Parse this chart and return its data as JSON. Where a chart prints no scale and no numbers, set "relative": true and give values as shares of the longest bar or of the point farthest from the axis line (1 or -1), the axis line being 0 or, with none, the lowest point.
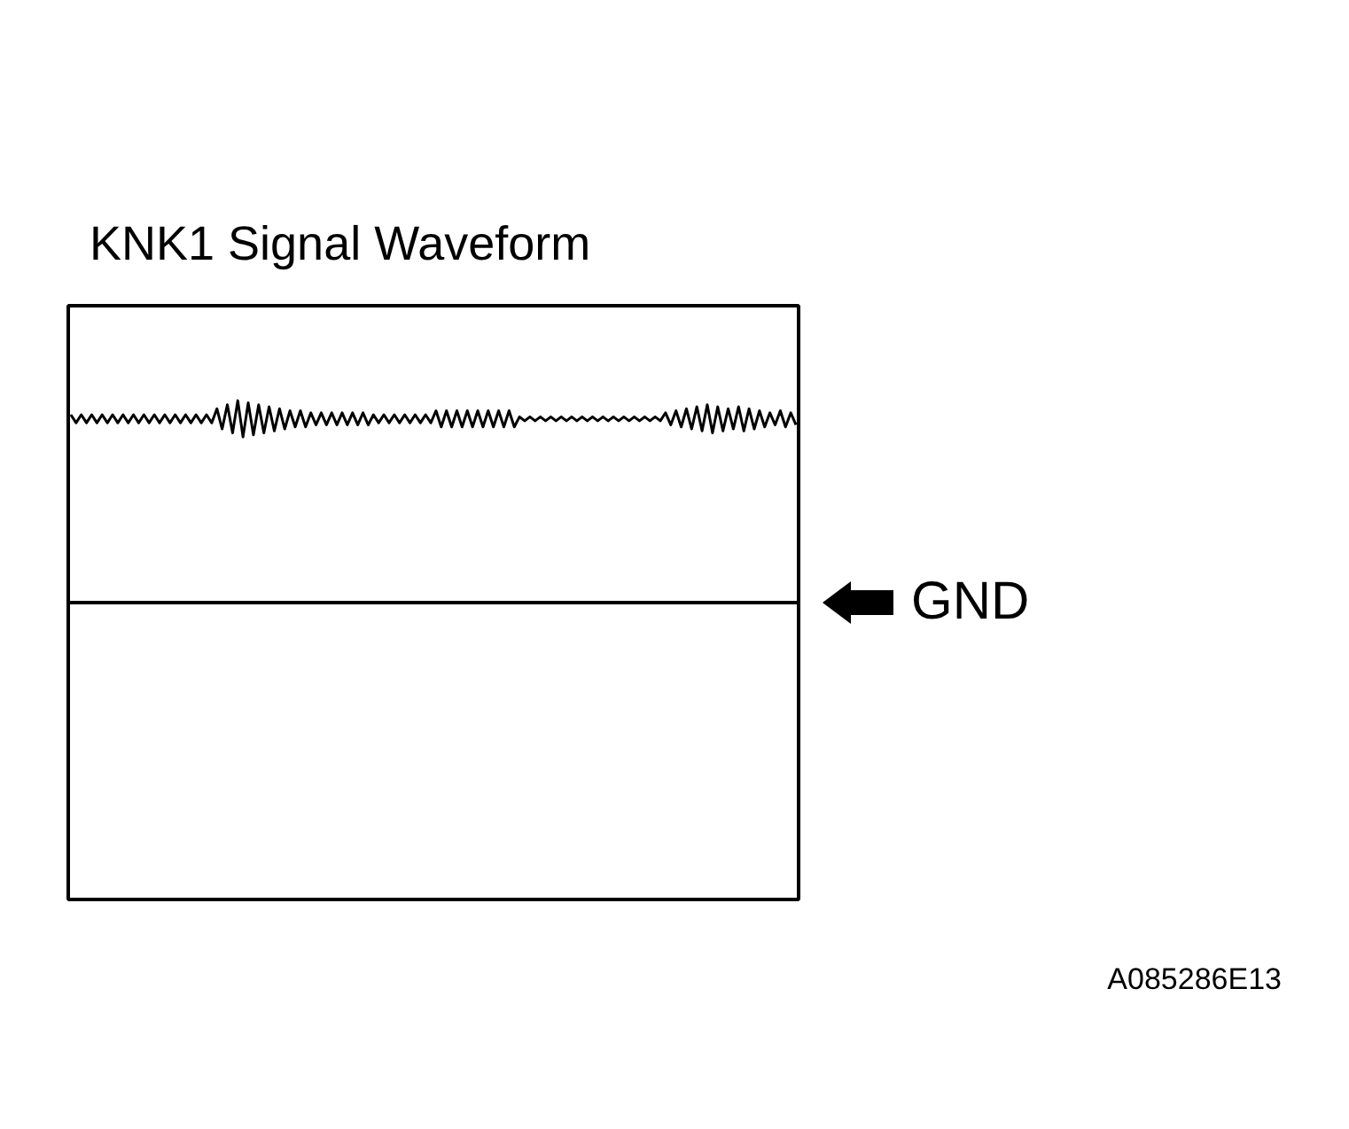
{
  "chart_data": {
    "type": "line",
    "title": "KNK1 Signal Waveform",
    "relative": true,
    "color": "#000000",
    "categories": [
      null,
      null,
      null,
      null,
      null,
      null,
      null,
      null,
      null,
      null,
      null,
      null,
      null,
      null,
      null,
      null,
      null,
      null,
      null,
      null,
      null,
      null,
      null,
      null,
      null,
      null,
      null,
      null,
      null,
      null,
      null,
      null,
      null,
      null,
      null,
      null,
      null,
      null,
      null,
      null,
      null,
      null,
      null,
      null,
      null,
      null,
      null,
      null,
      null,
      null,
      null,
      null,
      null,
      null,
      null,
      null,
      null,
      null,
      null,
      null,
      null,
      null,
      null,
      null,
      null,
      null,
      null,
      null,
      null,
      null,
      null,
      null,
      null,
      null,
      null,
      null,
      null,
      null,
      null,
      null,
      null,
      null,
      null,
      null,
      null,
      null,
      null,
      null,
      null,
      null,
      null,
      null,
      null,
      null,
      null,
      null,
      null,
      null,
      null,
      null,
      null,
      null,
      null,
      null,
      null,
      null,
      null,
      null,
      null,
      null,
      null,
      null,
      null,
      null,
      null,
      null,
      null,
      null,
      null,
      null,
      null,
      null,
      null,
      null,
      null,
      null,
      null,
      null,
      null,
      null,
      null,
      null,
      null,
      null,
      null,
      null,
      null,
      null,
      null,
      null
    ],
    "values": [
      0.93,
      0.89,
      0.93,
      0.89,
      0.93,
      0.89,
      0.93,
      0.89,
      0.93,
      0.89,
      0.93,
      0.89,
      0.93,
      0.89,
      0.93,
      0.89,
      0.93,
      0.89,
      0.93,
      0.89,
      0.93,
      0.89,
      0.93,
      0.89,
      0.93,
      0.89,
      0.93,
      0.89,
      0.96,
      0.86,
      0.98,
      0.84,
      1.0,
      0.82,
      0.99,
      0.83,
      0.98,
      0.84,
      0.97,
      0.85,
      0.96,
      0.86,
      0.95,
      0.87,
      0.95,
      0.87,
      0.94,
      0.88,
      0.94,
      0.88,
      0.94,
      0.88,
      0.94,
      0.88,
      0.94,
      0.88,
      0.94,
      0.88,
      0.93,
      0.89,
      0.93,
      0.89,
      0.93,
      0.89,
      0.93,
      0.89,
      0.93,
      0.89,
      0.93,
      0.89,
      0.95,
      0.87,
      0.95,
      0.87,
      0.95,
      0.87,
      0.95,
      0.87,
      0.95,
      0.87,
      0.95,
      0.87,
      0.95,
      0.87,
      0.95,
      0.87,
      0.92,
      0.9,
      0.92,
      0.9,
      0.92,
      0.9,
      0.92,
      0.9,
      0.92,
      0.9,
      0.92,
      0.9,
      0.92,
      0.9,
      0.92,
      0.9,
      0.92,
      0.9,
      0.92,
      0.9,
      0.92,
      0.9,
      0.92,
      0.9,
      0.92,
      0.9,
      0.92,
      0.9,
      0.94,
      0.88,
      0.95,
      0.87,
      0.96,
      0.86,
      0.97,
      0.85,
      0.98,
      0.84,
      0.97,
      0.85,
      0.96,
      0.86,
      0.97,
      0.85,
      0.96,
      0.86,
      0.95,
      0.87,
      0.94,
      0.88,
      0.95,
      0.87,
      0.94,
      0.88
    ],
    "ref_lines": [
      {
        "axis": "y",
        "value": 0,
        "label": "GND",
        "color": "#000000"
      }
    ],
    "annotations": [
      "A085286E13"
    ]
  }
}
